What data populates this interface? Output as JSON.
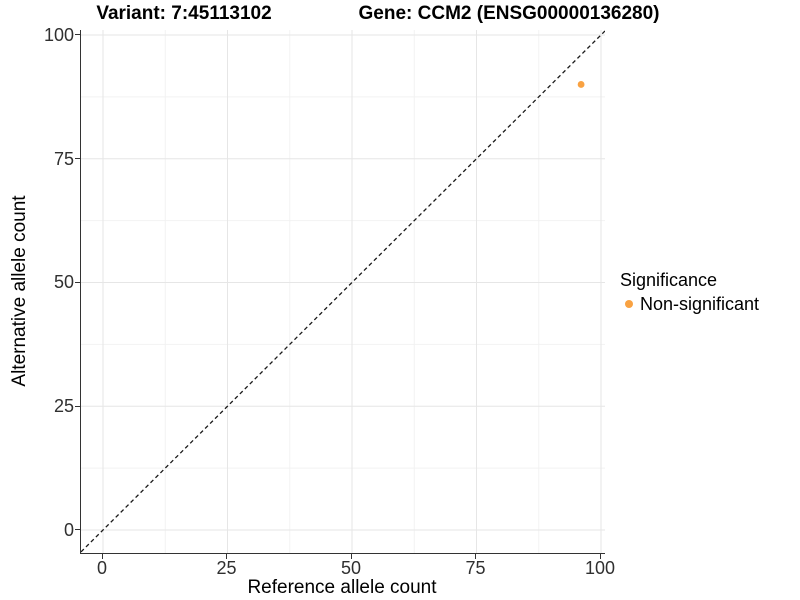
{
  "titles": {
    "left": "Variant: 7:45113102",
    "right": "Gene: CCM2 (ENSG00000136280)"
  },
  "legend": {
    "title": "Significance",
    "items": [
      {
        "label": "Non-significant",
        "color": "#F9A242"
      }
    ]
  },
  "chart_data": {
    "type": "scatter",
    "title": "Variant: 7:45113102 — Gene: CCM2 (ENSG00000136280)",
    "xlabel": "Reference allele count",
    "ylabel": "Alternative allele count",
    "xlim": [
      -4.42,
      100.8
    ],
    "ylim": [
      -4.65,
      101.0
    ],
    "x_ticks": [
      0,
      25,
      50,
      75,
      100
    ],
    "y_ticks": [
      0,
      25,
      50,
      75,
      100
    ],
    "x_minor_ticks": [
      12.5,
      37.5,
      62.5,
      87.5
    ],
    "y_minor_ticks": [
      12.5,
      37.5,
      62.5,
      87.5
    ],
    "grid": true,
    "legend_position": "right",
    "series": [
      {
        "name": "Non-significant",
        "color": "#F9A242",
        "points": [
          {
            "x": 96,
            "y": 90
          }
        ]
      }
    ],
    "reference_line": {
      "type": "identity",
      "slope": 1,
      "intercept": 0,
      "style": "dashed",
      "color": "#1a1a1a"
    }
  },
  "colors": {
    "point": "#F9A242",
    "grid_major": "#E6E6E6",
    "grid_minor": "#F2F2F2",
    "axis_line": "#333333",
    "tick_text": "#303030"
  }
}
